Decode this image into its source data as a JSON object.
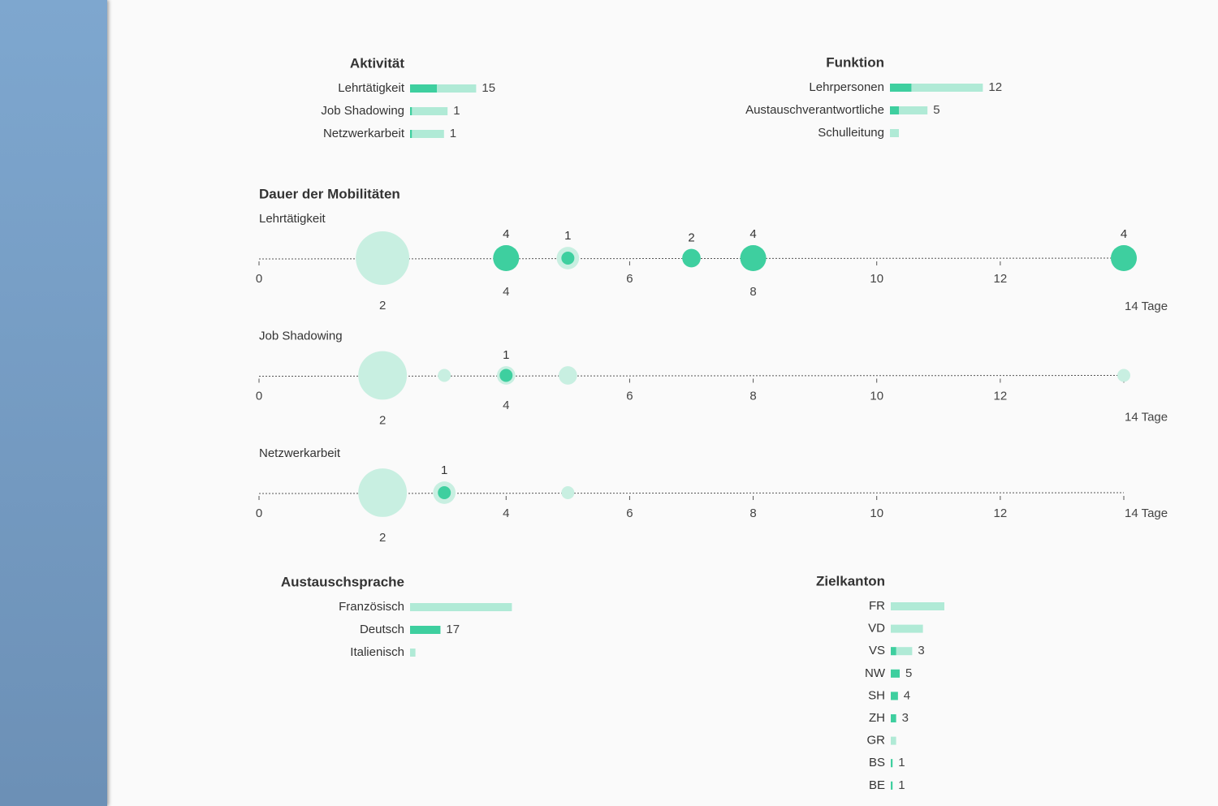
{
  "chart_data": [
    {
      "type": "bar",
      "title": "Aktivität",
      "categories": [
        "Lehrtätigkeit",
        "Job Shadowing",
        "Netzwerkarbeit"
      ],
      "series": [
        {
          "color": "#b0ead6",
          "values": [
            37,
            21,
            19
          ]
        },
        {
          "color": "#3ecf9f",
          "values": [
            15,
            1,
            1
          ]
        }
      ]
    },
    {
      "type": "bar",
      "title": "Funktion",
      "categories": [
        "Lehrpersonen",
        "Austauschverantwortliche",
        "Schulleitung"
      ],
      "series": [
        {
          "color": "#b0ead6",
          "values": [
            52,
            21,
            5
          ]
        },
        {
          "color": "#3ecf9f",
          "values": [
            12,
            5,
            0
          ]
        }
      ]
    },
    {
      "type": "dot",
      "title": "Dauer der Mobilitäten",
      "xlim": [
        0,
        14
      ],
      "xticks": [
        0,
        2,
        4,
        6,
        8,
        10,
        12,
        {
          "value": 14,
          "label": "14 Tage"
        }
      ],
      "panels": [
        {
          "title": "Lehrtätigkeit",
          "x": [
            2,
            4,
            5,
            7,
            8,
            14
          ],
          "series": [
            {
              "color": "#c8efe1",
              "values": [
                17,
                4,
                3,
                2,
                4,
                4
              ]
            },
            {
              "color": "#3ecf9f",
              "values": [
                null,
                4,
                1,
                2,
                4,
                4
              ]
            }
          ]
        },
        {
          "title": "Job Shadowing",
          "x": [
            2,
            3,
            4,
            5,
            14
          ],
          "series": [
            {
              "color": "#c8efe1",
              "values": [
                14,
                1,
                2,
                2,
                1
              ]
            },
            {
              "color": "#3ecf9f",
              "values": [
                null,
                null,
                1,
                null,
                null
              ]
            }
          ]
        },
        {
          "title": "Netzwerkarbeit",
          "x": [
            2,
            3,
            5
          ],
          "series": [
            {
              "color": "#c8efe1",
              "values": [
                14,
                3,
                1
              ]
            },
            {
              "color": "#3ecf9f",
              "values": [
                null,
                1,
                null
              ]
            }
          ]
        }
      ]
    },
    {
      "type": "bar",
      "title": "Austauschsprache",
      "categories": [
        "Französisch",
        "Deutsch",
        "Italienisch"
      ],
      "series": [
        {
          "color": "#b0ead6",
          "values": [
            57,
            17,
            3
          ]
        },
        {
          "color": "#3ecf9f",
          "values": [
            0,
            17,
            0
          ]
        }
      ]
    },
    {
      "type": "bar",
      "title": "Zielkanton",
      "categories": [
        "FR",
        "VD",
        "VS",
        "NW",
        "SH",
        "ZH",
        "GR",
        "BS",
        "BE"
      ],
      "series": [
        {
          "color": "#b0ead6",
          "values": [
            30,
            18,
            12,
            5,
            4,
            3,
            3,
            1,
            1
          ]
        },
        {
          "color": "#3ecf9f",
          "values": [
            0,
            0,
            3,
            5,
            4,
            3,
            0,
            1,
            1
          ]
        }
      ]
    }
  ]
}
